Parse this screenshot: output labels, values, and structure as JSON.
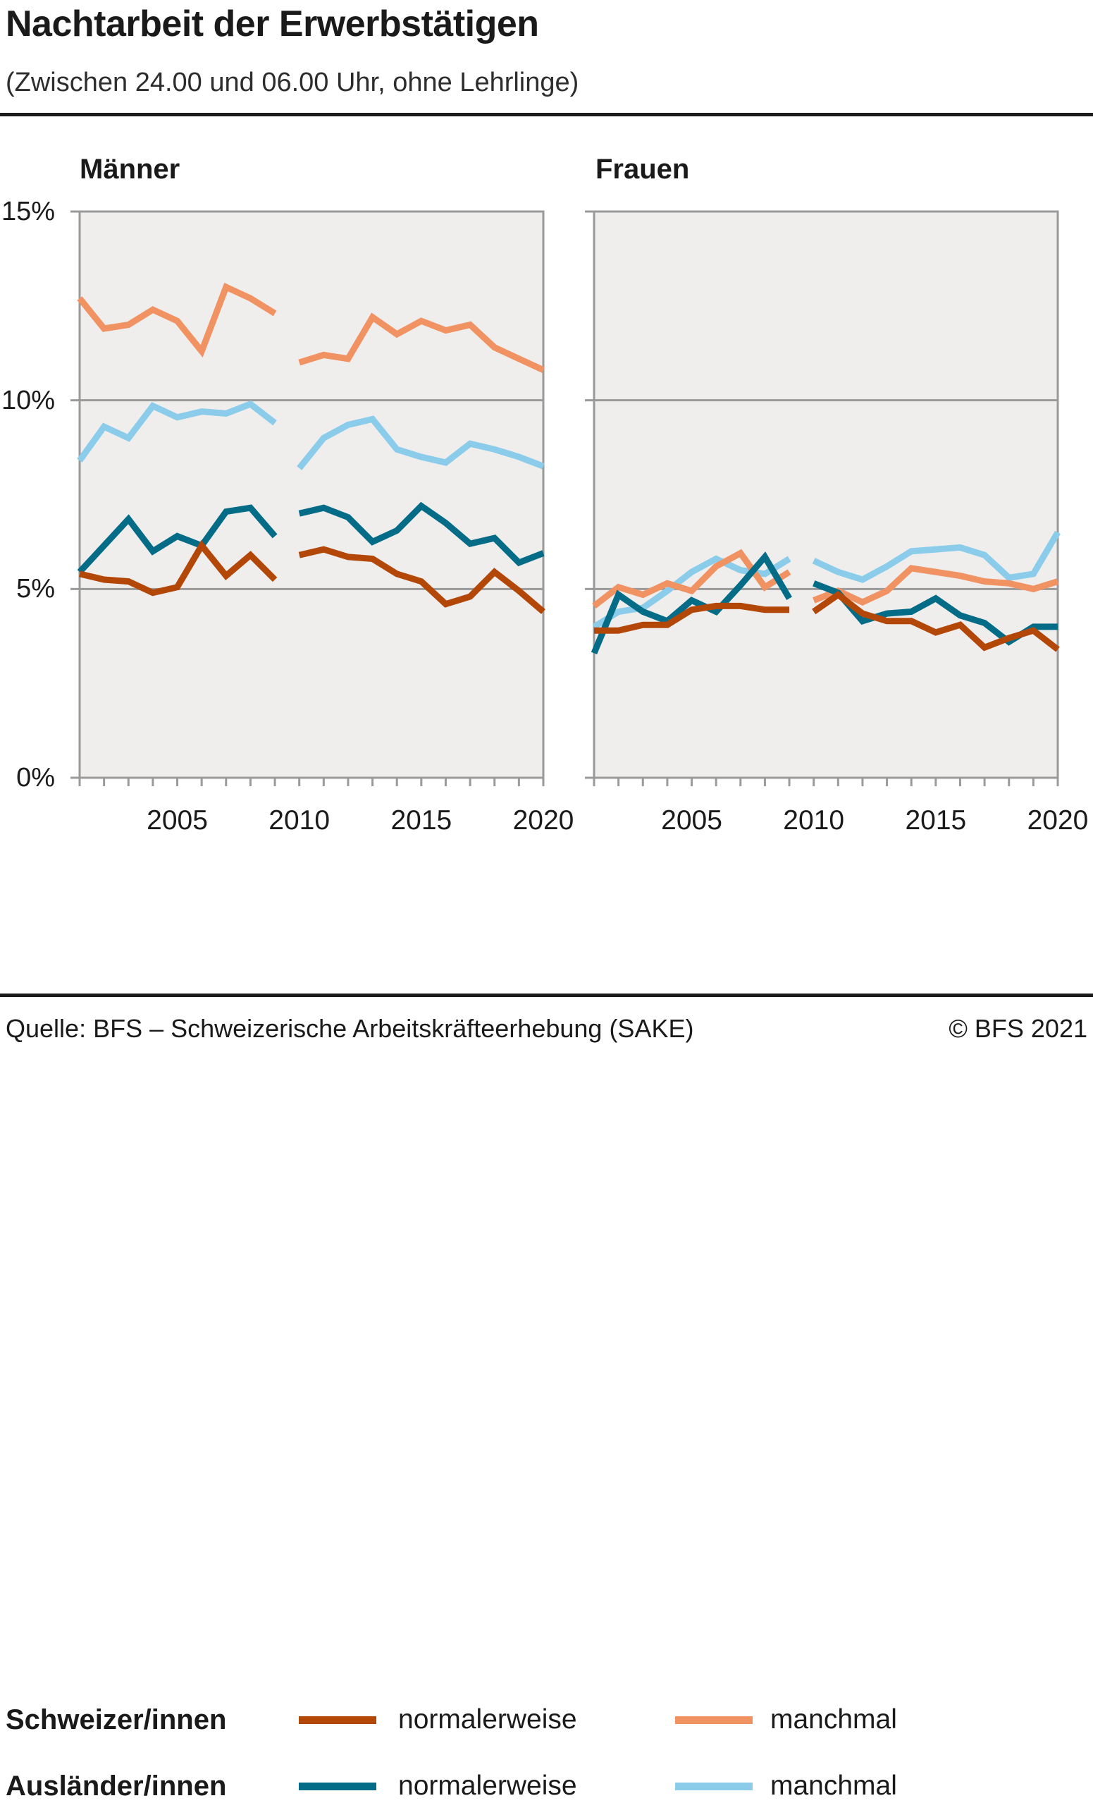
{
  "header": {
    "title": "Nachtarbeit der Erwerbstätigen",
    "subtitle": "(Zwischen 24.00 und 06.00 Uhr, ohne Lehrlinge)"
  },
  "colors": {
    "plot_background": "#efeeed",
    "grid": "#9a9a9a",
    "rule": "#1a1a1a",
    "schweizer_normalerweise": "#b34708",
    "schweizer_manchmal": "#f19263",
    "auslaender_normalerweise": "#056c87",
    "auslaender_manchmal": "#8accea"
  },
  "yaxis": {
    "labels": [
      "15%",
      "10%",
      "5%",
      "0%"
    ],
    "values": [
      15,
      10,
      5,
      0
    ]
  },
  "legend": {
    "rows": [
      {
        "group": "Schweizer/innen",
        "items": [
          {
            "label": "normalerweise",
            "color": "#b34708"
          },
          {
            "label": "manchmal",
            "color": "#f19263"
          }
        ]
      },
      {
        "group": "Ausländer/innen",
        "items": [
          {
            "label": "normalerweise",
            "color": "#056c87"
          },
          {
            "label": "manchmal",
            "color": "#8accea"
          }
        ]
      }
    ]
  },
  "footer": {
    "source": "Quelle: BFS – Schweizerische Arbeitskräfteerhebung (SAKE)",
    "copyright": "© BFS 2021"
  },
  "chart_data": [
    {
      "type": "line",
      "title": "Männer",
      "xlabel": "",
      "ylabel": "",
      "ylim": [
        0,
        15
      ],
      "xlim": [
        2001,
        2020
      ],
      "grid": true,
      "y_gridlines": [
        5,
        10
      ],
      "x_ticks": [
        "2005",
        "2010",
        "2015",
        "2020"
      ],
      "note": "series break between 2009 and 2010",
      "series": [
        {
          "name": "Ausländer/innen manchmal",
          "color": "#8accea",
          "segments": [
            {
              "start_year": 2001,
              "values": [
                8.4,
                9.3,
                9.0,
                9.85,
                9.55,
                9.7,
                9.65,
                9.9,
                9.4
              ]
            },
            {
              "start_year": 2010,
              "values": [
                8.2,
                9.0,
                9.35,
                9.5,
                8.7,
                8.5,
                8.35,
                8.85,
                8.7,
                8.5,
                8.25
              ]
            }
          ]
        },
        {
          "name": "Schweizer/innen manchmal",
          "color": "#f19263",
          "segments": [
            {
              "start_year": 2001,
              "values": [
                12.7,
                11.9,
                12.0,
                12.4,
                12.1,
                11.3,
                13.0,
                12.7,
                12.3
              ]
            },
            {
              "start_year": 2010,
              "values": [
                11.0,
                11.2,
                11.1,
                12.2,
                11.75,
                12.1,
                11.85,
                12.0,
                11.4,
                11.1,
                10.8
              ]
            }
          ]
        },
        {
          "name": "Ausländer/innen normalerweise",
          "color": "#056c87",
          "segments": [
            {
              "start_year": 2001,
              "values": [
                5.45,
                6.15,
                6.85,
                6.0,
                6.4,
                6.15,
                7.05,
                7.15,
                6.4
              ]
            },
            {
              "start_year": 2010,
              "values": [
                7.0,
                7.15,
                6.9,
                6.25,
                6.55,
                7.2,
                6.75,
                6.2,
                6.35,
                5.7,
                5.95
              ]
            }
          ]
        },
        {
          "name": "Schweizer/innen normalerweise",
          "color": "#b34708",
          "segments": [
            {
              "start_year": 2001,
              "values": [
                5.4,
                5.25,
                5.2,
                4.9,
                5.05,
                6.15,
                5.35,
                5.9,
                5.25
              ]
            },
            {
              "start_year": 2010,
              "values": [
                5.9,
                6.05,
                5.85,
                5.8,
                5.4,
                5.2,
                4.6,
                4.8,
                5.45,
                4.95,
                4.4
              ]
            }
          ]
        }
      ]
    },
    {
      "type": "line",
      "title": "Frauen",
      "xlabel": "",
      "ylabel": "",
      "ylim": [
        0,
        15
      ],
      "xlim": [
        2001,
        2020
      ],
      "grid": true,
      "y_gridlines": [
        5,
        10
      ],
      "x_ticks": [
        "2005",
        "2010",
        "2015",
        "2020"
      ],
      "note": "series break between 2009 and 2010",
      "series": [
        {
          "name": "Ausländer/innen manchmal",
          "color": "#8accea",
          "segments": [
            {
              "start_year": 2001,
              "values": [
                4.0,
                4.4,
                4.5,
                4.95,
                5.45,
                5.8,
                5.5,
                5.4,
                5.8
              ]
            },
            {
              "start_year": 2010,
              "values": [
                5.75,
                5.45,
                5.25,
                5.6,
                6.0,
                6.05,
                6.1,
                5.9,
                5.3,
                5.4,
                6.5
              ]
            }
          ]
        },
        {
          "name": "Schweizer/innen manchmal",
          "color": "#f19263",
          "segments": [
            {
              "start_year": 2001,
              "values": [
                4.55,
                5.05,
                4.85,
                5.15,
                4.95,
                5.6,
                5.95,
                5.05,
                5.45
              ]
            },
            {
              "start_year": 2010,
              "values": [
                4.7,
                4.95,
                4.65,
                4.95,
                5.55,
                5.45,
                5.35,
                5.2,
                5.15,
                5.0,
                5.2
              ]
            }
          ]
        },
        {
          "name": "Ausländer/innen normalerweise",
          "color": "#056c87",
          "segments": [
            {
              "start_year": 2001,
              "values": [
                3.3,
                4.85,
                4.4,
                4.15,
                4.7,
                4.4,
                5.1,
                5.85,
                4.75
              ]
            },
            {
              "start_year": 2010,
              "values": [
                5.15,
                4.9,
                4.15,
                4.35,
                4.4,
                4.75,
                4.3,
                4.1,
                3.6,
                4.0,
                4.0
              ]
            }
          ]
        },
        {
          "name": "Schweizer/innen normalerweise",
          "color": "#b34708",
          "segments": [
            {
              "start_year": 2001,
              "values": [
                3.9,
                3.9,
                4.05,
                4.05,
                4.45,
                4.55,
                4.55,
                4.45,
                4.45
              ]
            },
            {
              "start_year": 2010,
              "values": [
                4.4,
                4.85,
                4.35,
                4.15,
                4.15,
                3.85,
                4.05,
                3.45,
                3.7,
                3.9,
                3.4
              ]
            }
          ]
        }
      ]
    }
  ]
}
